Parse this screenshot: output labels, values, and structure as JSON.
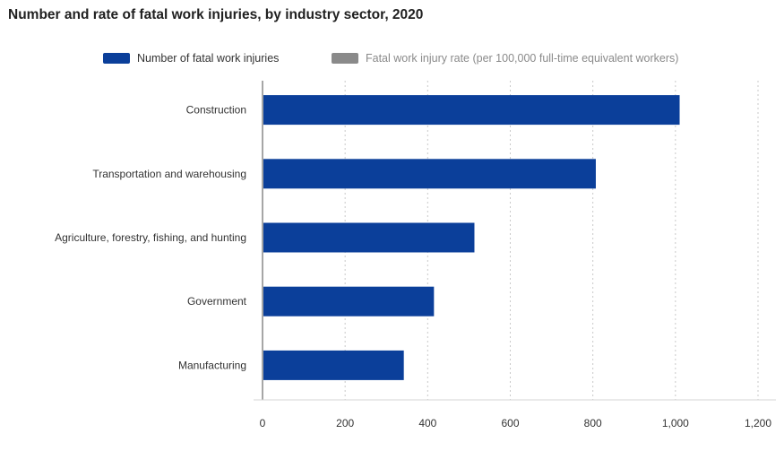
{
  "chart_data": {
    "type": "bar",
    "orientation": "horizontal",
    "title": "Number and rate of fatal work injuries, by industry sector, 2020",
    "categories": [
      "Construction",
      "Transportation and warehousing",
      "Agriculture, forestry, fishing, and hunting",
      "Government",
      "Manufacturing"
    ],
    "series": [
      {
        "name": "Number of fatal work injuries",
        "color": "#0b3f9a",
        "values": [
          1008,
          805,
          511,
          413,
          340
        ],
        "active": true
      },
      {
        "name": "Fatal work injury rate (per 100,000 full-time equivalent workers)",
        "color": "#8a8a8a",
        "active": false
      }
    ],
    "x_ticks": [
      "0",
      "200",
      "400",
      "600",
      "800",
      "1,000",
      "1,200"
    ],
    "xlim": [
      0,
      1200
    ],
    "grid": "vertical dotted",
    "legend_position": "top"
  }
}
